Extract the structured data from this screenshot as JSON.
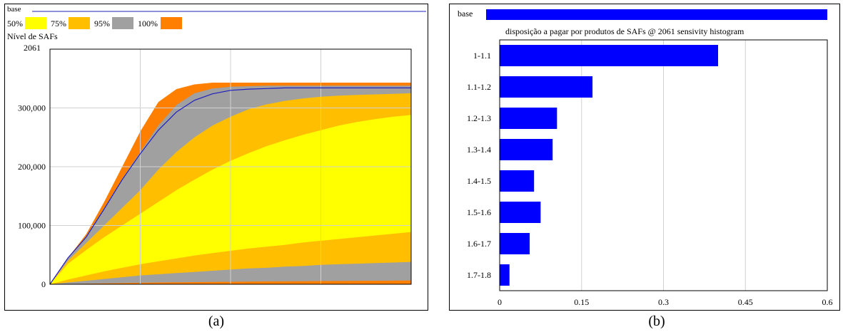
{
  "chart_data": [
    {
      "type": "area",
      "panel_label": "(a)",
      "base_label": "base",
      "ylabel": "Nível de SAFs",
      "y_top_label": "2061",
      "ylim": [
        0,
        400000
      ],
      "y_ticks": [
        "0",
        "100,000",
        "200,000",
        "300,000"
      ],
      "y_tick_values": [
        0,
        100000,
        200000,
        300000
      ],
      "legend": [
        {
          "name": "50%",
          "color": "#ffff00"
        },
        {
          "name": "75%",
          "color": "#ffbf00"
        },
        {
          "name": "95%",
          "color": "#a0a0a0"
        },
        {
          "name": "100%",
          "color": "#ff7f00"
        }
      ],
      "base_color": "#1f1fbf",
      "grid": true,
      "x": [
        0,
        0.05,
        0.1,
        0.15,
        0.2,
        0.25,
        0.3,
        0.35,
        0.4,
        0.45,
        0.5,
        0.55,
        0.6,
        0.65,
        0.7,
        0.75,
        0.8,
        0.85,
        0.9,
        0.95,
        1.0
      ],
      "bands": {
        "p100_upper": [
          0,
          45000,
          85000,
          140000,
          200000,
          260000,
          310000,
          332000,
          340000,
          343000,
          343000,
          343000,
          343000,
          343000,
          343000,
          343000,
          343000,
          343000,
          343000,
          343000,
          343000
        ],
        "p95_upper": [
          0,
          44000,
          82000,
          130000,
          180000,
          225000,
          270000,
          305000,
          325000,
          333000,
          336000,
          337000,
          338000,
          338000,
          338000,
          338000,
          338000,
          338000,
          338000,
          338000,
          338000
        ],
        "p75_upper": [
          0,
          40000,
          70000,
          100000,
          130000,
          160000,
          195000,
          225000,
          250000,
          270000,
          285000,
          298000,
          306000,
          312000,
          316000,
          319000,
          321000,
          322000,
          323000,
          324000,
          325000
        ],
        "p50_upper": [
          0,
          35000,
          58000,
          80000,
          100000,
          120000,
          140000,
          160000,
          178000,
          195000,
          210000,
          223000,
          235000,
          245000,
          254000,
          262000,
          270000,
          276000,
          281000,
          285000,
          288000
        ],
        "p50_lower": [
          0,
          8000,
          15000,
          22000,
          28000,
          34000,
          39000,
          44000,
          49000,
          53000,
          57000,
          61000,
          64000,
          67000,
          71000,
          74000,
          77000,
          80000,
          83000,
          86000,
          89000
        ],
        "p75_lower": [
          0,
          3000,
          6000,
          9000,
          12000,
          15000,
          17000,
          19000,
          21000,
          23000,
          25000,
          27000,
          28000,
          30000,
          31000,
          33000,
          34000,
          35000,
          36000,
          37000,
          38000
        ],
        "p95_lower": [
          0,
          500,
          1000,
          1500,
          2000,
          2500,
          3000,
          3300,
          3600,
          3900,
          4200,
          4500,
          4800,
          5000,
          5200,
          5400,
          5600,
          5800,
          6000,
          6200,
          6500
        ],
        "p100_lower": [
          0,
          0,
          0,
          0,
          0,
          0,
          0,
          0,
          0,
          0,
          0,
          0,
          0,
          0,
          0,
          0,
          0,
          0,
          0,
          0,
          0
        ]
      },
      "base": [
        0,
        45000,
        80000,
        128000,
        178000,
        222000,
        262000,
        293000,
        313000,
        324000,
        330000,
        332000,
        333000,
        334000,
        334000,
        334000,
        334000,
        334000,
        334000,
        334000,
        334000
      ]
    },
    {
      "type": "bar",
      "panel_label": "(b)",
      "orientation": "horizontal",
      "base_label": "base",
      "title": "disposição a pagar por produtos de SAFs @ 2061 sensivity histogram",
      "categories": [
        "1-1.1",
        "1.1-1.2",
        "1.2-1.3",
        "1.3-1.4",
        "1.4-1.5",
        "1.5-1.6",
        "1.6-1.7",
        "1.7-1.8"
      ],
      "values": [
        0.4,
        0.17,
        0.105,
        0.097,
        0.063,
        0.075,
        0.055,
        0.018
      ],
      "xlim": [
        0,
        0.6
      ],
      "x_ticks": [
        "0",
        "0.15",
        "0.3",
        "0.45",
        "0.6"
      ],
      "x_tick_values": [
        0,
        0.15,
        0.3,
        0.45,
        0.6
      ],
      "bar_color": "#0000ff",
      "grid": true
    }
  ]
}
